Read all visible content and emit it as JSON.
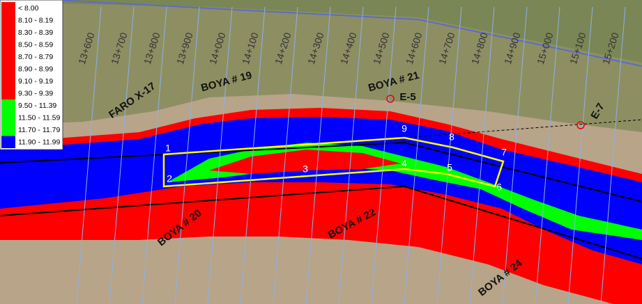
{
  "legend": {
    "items": [
      {
        "label": "< 8.00",
        "color": "#ff0000"
      },
      {
        "label": "8.10 - 8.19",
        "color": "#ff0000"
      },
      {
        "label": "8.30 - 8.39",
        "color": "#ff0000"
      },
      {
        "label": "8.50 - 8.59",
        "color": "#ff0000"
      },
      {
        "label": "8.70 - 8.79",
        "color": "#ff0000"
      },
      {
        "label": "8.90 - 8.99",
        "color": "#ff0000"
      },
      {
        "label": "9.10 - 9.19",
        "color": "#ff0000"
      },
      {
        "label": "9.30 - 9.39",
        "color": "#ff0000"
      },
      {
        "label": "9.50 - 11.39",
        "color": "#00ff00"
      },
      {
        "label": "11.50 - 11.59",
        "color": "#00ff00"
      },
      {
        "label": "11.70 - 11.79",
        "color": "#00ff00"
      },
      {
        "label": "11.90 - 11.99",
        "color": "#0000ff"
      }
    ]
  },
  "stations": [
    "13+600",
    "13+700",
    "13+800",
    "13+900",
    "14+000",
    "14+100",
    "14+200",
    "14+300",
    "14+400",
    "14+500",
    "14+600",
    "14+700",
    "14+800",
    "14+900",
    "15+000",
    "15+100",
    "15+200"
  ],
  "buoys": [
    "FARO X-17",
    "BOYA # 19",
    "BOYA # 20",
    "BOYA # 21",
    "BOYA # 22",
    "BOYA # 24"
  ],
  "markers": [
    "E-5",
    "E-7"
  ],
  "polygon_points": [
    "1",
    "2",
    "3",
    "4",
    "5",
    "6",
    "7",
    "8",
    "9"
  ]
}
